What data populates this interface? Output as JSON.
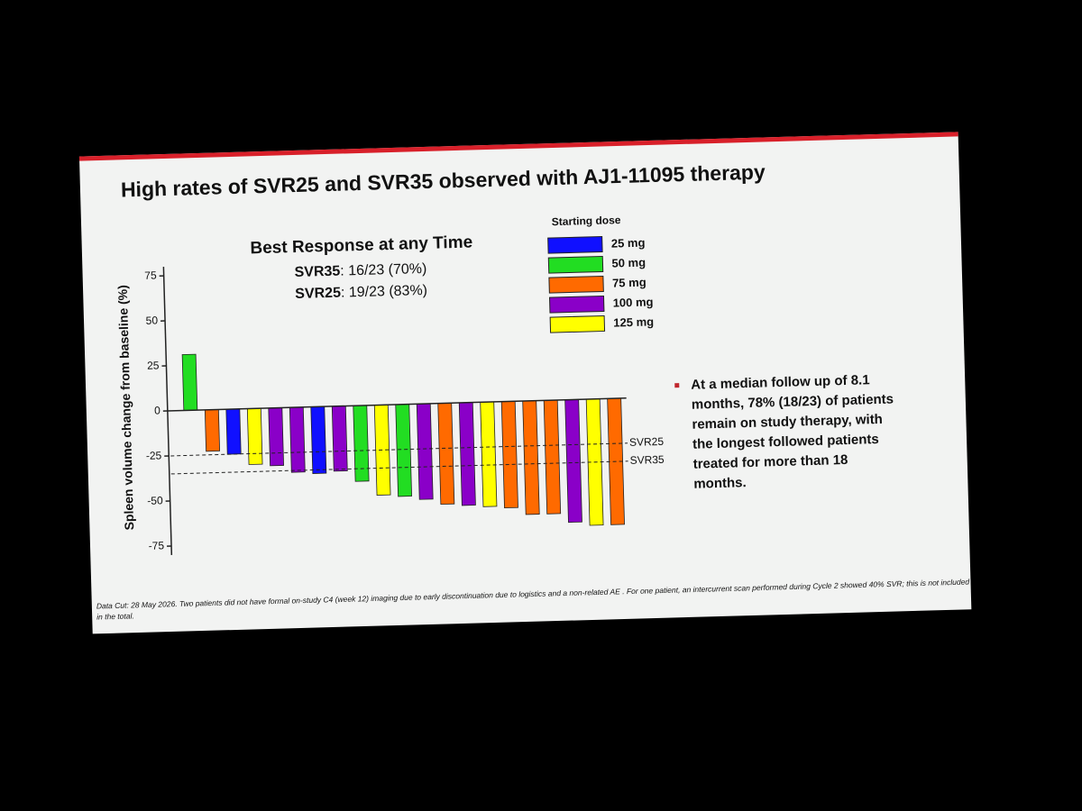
{
  "chart_data": {
    "type": "bar",
    "title": "High rates of SVR25 and SVR35 observed with AJ1-11095 therapy",
    "subtitle": "Best Response at any Time",
    "stats": [
      {
        "label": "SVR35",
        "text": ": 16/23 (70%)"
      },
      {
        "label": "SVR25",
        "text": ": 19/23 (83%)"
      }
    ],
    "y_label": "Spleen volume change from baseline (%)",
    "values": [
      31,
      -23,
      -25,
      -31,
      -32,
      -36,
      -37,
      -36,
      -42,
      -50,
      -51,
      -53,
      -56,
      -57,
      -58,
      -59,
      -63,
      -63,
      -68,
      -70,
      -70
    ],
    "colors": [
      "#22dd22",
      "#ff6a00",
      "#1010ff",
      "#ffff00",
      "#8a00c8",
      "#8a00c8",
      "#1010ff",
      "#8a00c8",
      "#22dd22",
      "#ffff00",
      "#22dd22",
      "#8a00c8",
      "#ff6a00",
      "#8a00c8",
      "#ffff00",
      "#ff6a00",
      "#ff6a00",
      "#ff6a00",
      "#8a00c8",
      "#ffff00",
      "#ff6a00"
    ],
    "ylim": [
      -80,
      80
    ],
    "yticks": [
      75,
      50,
      25,
      0,
      -25,
      -50,
      -75
    ],
    "reference_lines": [
      {
        "value": -25,
        "label": "SVR25"
      },
      {
        "value": -35,
        "label": "SVR35"
      }
    ],
    "legend": {
      "title": "Starting dose",
      "items": [
        {
          "label": "25 mg",
          "color": "#1010ff"
        },
        {
          "label": "50 mg",
          "color": "#22dd22"
        },
        {
          "label": "75 mg",
          "color": "#ff6a00"
        },
        {
          "label": "100 mg",
          "color": "#8a00c8"
        },
        {
          "label": "125 mg",
          "color": "#ffff00"
        }
      ]
    },
    "bullet": [
      "At a median follow up of 8.1",
      "months, 78% (18/23) of patients",
      "remain on study therapy, with",
      "the longest followed patients",
      "treated for more than 18",
      "months."
    ],
    "footnote": [
      "Data Cut: 28 May 2026. Two patients did not have formal on-study C4 (week 12) imaging due to early discontinuation due to logistics and a non-related AE .  For one patient, an intercurrent scan performed during Cycle 2 showed 40% SVR; this is not included",
      "in the total."
    ]
  }
}
